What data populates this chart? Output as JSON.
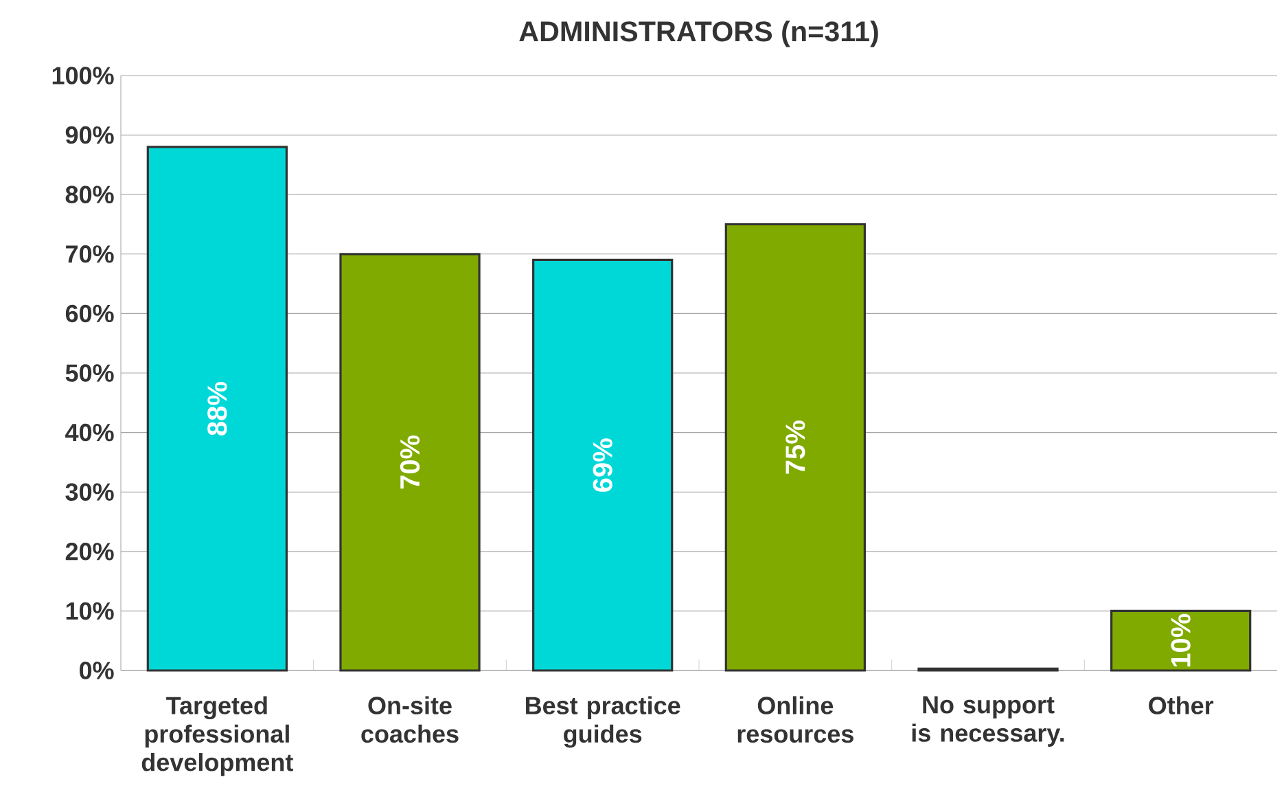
{
  "chart_data": {
    "type": "bar",
    "title": "ADMINISTRATORS (n=311)",
    "categories": [
      "Targeted professional development",
      "On-site coaches",
      "Best practice guides",
      "Online resources",
      "No support is necessary.",
      "Other"
    ],
    "values": [
      88,
      70,
      69,
      75,
      0.3,
      10
    ],
    "value_labels": [
      "88%",
      "70%",
      "69%",
      "75%",
      null,
      "10%"
    ],
    "colors": [
      "#00d8d8",
      "#80aa00",
      "#00d8d8",
      "#80aa00",
      "#333333",
      "#80aa00"
    ],
    "ylim": [
      0,
      100
    ],
    "yticks": [
      {
        "value": 0,
        "label": "0%"
      },
      {
        "value": 10,
        "label": "10%"
      },
      {
        "value": 20,
        "label": "20%"
      },
      {
        "value": 30,
        "label": "30%"
      },
      {
        "value": 40,
        "label": "40%"
      },
      {
        "value": 50,
        "label": "50%"
      },
      {
        "value": 60,
        "label": "60%"
      },
      {
        "value": 70,
        "label": "70%"
      },
      {
        "value": 80,
        "label": "80%"
      },
      {
        "value": 90,
        "label": "90%"
      },
      {
        "value": 100,
        "label": "100%"
      }
    ],
    "grid": "y"
  }
}
